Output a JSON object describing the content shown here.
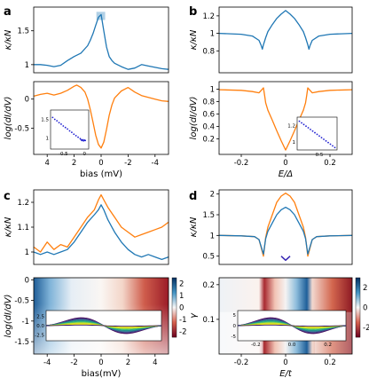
{
  "panel_labels": [
    "a",
    "b",
    "c",
    "d"
  ],
  "colors": {
    "blue": "#1f77b4",
    "orange": "#ff7f0e",
    "inset_blue": "#1f1fd0"
  },
  "chart_data": [
    {
      "id": "a-top",
      "type": "line",
      "ylabel": "κ/κN",
      "xlim": [
        5,
        -5
      ],
      "ylim": [
        0.88,
        1.85
      ],
      "ytick_labels": [
        "1",
        "1.5"
      ],
      "ytick_values": [
        1,
        1.5
      ],
      "series": [
        {
          "color": "#1f77b4",
          "x": [
            5,
            4.5,
            4,
            3.5,
            3,
            2.5,
            2,
            1.5,
            1,
            0.8,
            0.6,
            0.4,
            0.2,
            0,
            -0.2,
            -0.4,
            -0.6,
            -0.8,
            -1,
            -1.5,
            -2,
            -2.5,
            -3,
            -3.5,
            -4,
            -4.5,
            -5
          ],
          "y": [
            1.0,
            1.0,
            0.99,
            0.97,
            0.99,
            1.06,
            1.12,
            1.17,
            1.28,
            1.36,
            1.46,
            1.58,
            1.7,
            1.74,
            1.5,
            1.26,
            1.12,
            1.06,
            1.02,
            0.97,
            0.93,
            0.95,
            1.0,
            0.98,
            0.96,
            0.94,
            0.93
          ]
        }
      ]
    },
    {
      "id": "a-bottom",
      "type": "line",
      "ylabel": "log(dI/dV)",
      "xlabel": "bias (mV)",
      "xlim": [
        5,
        -5
      ],
      "ylim": [
        -0.95,
        0.3
      ],
      "xtick_labels": [
        "4",
        "2",
        "0",
        "-2",
        "-4"
      ],
      "xtick_values": [
        4,
        2,
        0,
        -2,
        -4
      ],
      "ytick_labels": [
        "0",
        "-0.5"
      ],
      "ytick_values": [
        0,
        -0.5
      ],
      "series": [
        {
          "color": "#ff7f0e",
          "x": [
            5,
            4.5,
            4,
            3.5,
            3,
            2.5,
            2,
            1.8,
            1.5,
            1.2,
            1,
            0.8,
            0.6,
            0.4,
            0.2,
            0,
            -0.2,
            -0.4,
            -0.6,
            -0.8,
            -1,
            -1.5,
            -2,
            -2.5,
            -3,
            -3.5,
            -4,
            -4.5,
            -5
          ],
          "y": [
            0.05,
            0.08,
            0.1,
            0.07,
            0.1,
            0.15,
            0.22,
            0.24,
            0.2,
            0.12,
            0.0,
            -0.18,
            -0.4,
            -0.62,
            -0.78,
            -0.84,
            -0.74,
            -0.52,
            -0.28,
            -0.1,
            0.02,
            0.14,
            0.2,
            0.12,
            0.06,
            0.03,
            0.0,
            -0.03,
            -0.04
          ]
        }
      ],
      "inset": {
        "type": "scatter",
        "color": "#1f1fd0",
        "xtick_labels": [
          "-0.5",
          "0"
        ],
        "xtick_values": [
          -0.5,
          0
        ],
        "ytick_labels": [
          "1.5",
          "1"
        ],
        "ytick_values": [
          1.5,
          1
        ],
        "xlim": [
          -0.8,
          0.1
        ],
        "ylim": [
          0.7,
          1.75
        ],
        "x": [
          -0.75,
          -0.7,
          -0.65,
          -0.6,
          -0.55,
          -0.5,
          -0.45,
          -0.4,
          -0.35,
          -0.3,
          -0.25,
          -0.2,
          -0.15,
          -0.1,
          -0.08,
          -0.06,
          -0.04,
          -0.02,
          0.0,
          0.02
        ],
        "y": [
          1.55,
          1.5,
          1.46,
          1.41,
          1.37,
          1.32,
          1.28,
          1.24,
          1.19,
          1.15,
          1.1,
          1.06,
          1.02,
          0.98,
          0.95,
          0.93,
          0.95,
          0.92,
          0.94,
          0.93
        ]
      }
    },
    {
      "id": "b-top",
      "type": "line",
      "ylabel": "κ/κN",
      "xlim": [
        -0.3,
        0.3
      ],
      "ylim": [
        0.55,
        1.3
      ],
      "ytick_labels": [
        "1.2",
        "1",
        "0.8"
      ],
      "ytick_values": [
        1.2,
        1.0,
        0.8
      ],
      "series": [
        {
          "color": "#1f77b4",
          "x": [
            -0.3,
            -0.2,
            -0.15,
            -0.12,
            -0.11,
            -0.105,
            -0.1,
            -0.09,
            -0.08,
            -0.06,
            -0.04,
            -0.02,
            0,
            0.02,
            0.04,
            0.06,
            0.08,
            0.09,
            0.1,
            0.105,
            0.11,
            0.12,
            0.15,
            0.2,
            0.3
          ],
          "y": [
            1.0,
            0.99,
            0.97,
            0.92,
            0.86,
            0.82,
            0.87,
            0.95,
            1.02,
            1.1,
            1.17,
            1.22,
            1.26,
            1.22,
            1.17,
            1.1,
            1.02,
            0.95,
            0.87,
            0.82,
            0.86,
            0.92,
            0.97,
            0.99,
            1.0
          ]
        }
      ]
    },
    {
      "id": "b-bottom",
      "type": "line",
      "ylabel": "log(dI/dV)",
      "xlabel": "E/Δ",
      "xlim": [
        -0.3,
        0.3
      ],
      "ylim": [
        -0.05,
        1.12
      ],
      "xtick_labels": [
        "-0.2",
        "0",
        "0.2"
      ],
      "xtick_values": [
        -0.2,
        0,
        0.2
      ],
      "ytick_labels": [
        "1",
        "0.8",
        "0.6",
        "0.4",
        "0.2"
      ],
      "ytick_values": [
        1,
        0.8,
        0.6,
        0.4,
        0.2
      ],
      "series": [
        {
          "color": "#ff7f0e",
          "x": [
            -0.3,
            -0.2,
            -0.15,
            -0.12,
            -0.11,
            -0.1,
            -0.095,
            -0.09,
            -0.08,
            -0.06,
            -0.04,
            -0.02,
            0,
            0.02,
            0.04,
            0.06,
            0.08,
            0.09,
            0.095,
            0.1,
            0.11,
            0.12,
            0.15,
            0.2,
            0.3
          ],
          "y": [
            0.99,
            0.98,
            0.96,
            0.94,
            0.98,
            1.02,
            0.9,
            0.78,
            0.66,
            0.5,
            0.33,
            0.17,
            0.02,
            0.17,
            0.33,
            0.5,
            0.66,
            0.78,
            0.9,
            1.02,
            0.98,
            0.94,
            0.96,
            0.98,
            0.99
          ]
        }
      ],
      "inset": {
        "type": "scatter",
        "color": "#1f1fd0",
        "xtick_labels": [
          "0.5"
        ],
        "xtick_values": [
          0.5
        ],
        "ytick_labels": [
          "1.2",
          "1"
        ],
        "ytick_values": [
          1.2,
          1.0
        ],
        "xlim": [
          0,
          0.9
        ],
        "ylim": [
          0.9,
          1.3
        ],
        "x": [
          0.05,
          0.1,
          0.15,
          0.2,
          0.25,
          0.3,
          0.35,
          0.4,
          0.45,
          0.5,
          0.55,
          0.6,
          0.65,
          0.7,
          0.75,
          0.8,
          0.85
        ],
        "y": [
          1.25,
          1.23,
          1.21,
          1.19,
          1.17,
          1.15,
          1.13,
          1.11,
          1.09,
          1.07,
          1.05,
          1.03,
          1.01,
          0.99,
          0.97,
          0.95,
          0.93
        ]
      }
    },
    {
      "id": "c-top",
      "type": "line",
      "ylabel": "κ/κN",
      "xlim": [
        -5,
        5
      ],
      "ylim": [
        0.95,
        1.25
      ],
      "ytick_labels": [
        "1.2",
        "1.1",
        "1"
      ],
      "ytick_values": [
        1.2,
        1.1,
        1.0
      ],
      "series": [
        {
          "color": "#ff7f0e",
          "x": [
            -5,
            -4.5,
            -4,
            -3.5,
            -3,
            -2.5,
            -2,
            -1.5,
            -1,
            -0.5,
            -0.2,
            0,
            0.2,
            0.5,
            1,
            1.5,
            2,
            2.5,
            3,
            3.5,
            4,
            4.5,
            5
          ],
          "y": [
            1.02,
            1.0,
            1.04,
            1.01,
            1.03,
            1.02,
            1.06,
            1.1,
            1.14,
            1.17,
            1.21,
            1.23,
            1.21,
            1.18,
            1.14,
            1.1,
            1.08,
            1.06,
            1.07,
            1.08,
            1.09,
            1.1,
            1.12
          ]
        },
        {
          "color": "#1f77b4",
          "x": [
            -5,
            -4.5,
            -4,
            -3.5,
            -3,
            -2.5,
            -2,
            -1.5,
            -1,
            -0.5,
            -0.2,
            0,
            0.2,
            0.5,
            1,
            1.5,
            2,
            2.5,
            3,
            3.5,
            4,
            4.5,
            5
          ],
          "y": [
            1.0,
            0.99,
            1.0,
            0.99,
            1.0,
            1.01,
            1.04,
            1.08,
            1.12,
            1.15,
            1.17,
            1.19,
            1.17,
            1.13,
            1.08,
            1.04,
            1.01,
            0.99,
            0.98,
            0.99,
            0.98,
            0.97,
            0.98
          ]
        }
      ]
    },
    {
      "id": "c-bottom",
      "type": "heatmap",
      "ylabel": "log(dI/dV)",
      "xlabel": "bias(mV)",
      "xlim": [
        -5,
        5
      ],
      "ylim": [
        -1.8,
        0.05
      ],
      "xtick_labels": [
        "-4",
        "-2",
        "0",
        "2",
        "4"
      ],
      "xtick_values": [
        -4,
        -2,
        0,
        2,
        4
      ],
      "ytick_labels": [
        "0",
        "-0.5",
        "-1",
        "-1.5"
      ],
      "ytick_values": [
        0,
        -0.5,
        -1,
        -1.5
      ],
      "colorbar": {
        "ticks": [
          "2",
          "1",
          "0",
          "-1",
          "-2"
        ],
        "range": [
          -2.5,
          2.5
        ]
      },
      "inset": {
        "type": "line",
        "ytick_labels": [
          "2.5",
          "0.0",
          "-2.5"
        ],
        "ytick_values": [
          2.5,
          0,
          -2.5
        ],
        "xtick_labels": [],
        "xlim": [
          -5,
          5
        ],
        "ylim": [
          -4,
          4
        ],
        "curves": 12
      }
    },
    {
      "id": "d-top",
      "type": "line",
      "ylabel": "κ/κN",
      "xlim": [
        -0.3,
        0.3
      ],
      "ylim": [
        0.3,
        2.1
      ],
      "ytick_labels": [
        "2",
        "1.5",
        "1",
        "0.5"
      ],
      "ytick_values": [
        2,
        1.5,
        1,
        0.5
      ],
      "series": [
        {
          "color": "#ff7f0e",
          "x": [
            -0.3,
            -0.2,
            -0.14,
            -0.12,
            -0.1,
            -0.09,
            -0.08,
            -0.06,
            -0.04,
            -0.02,
            0,
            0.02,
            0.04,
            0.06,
            0.08,
            0.09,
            0.1,
            0.12,
            0.14,
            0.2,
            0.3
          ],
          "y": [
            1.0,
            0.99,
            0.97,
            0.9,
            0.5,
            0.95,
            1.2,
            1.5,
            1.8,
            1.95,
            2.02,
            1.95,
            1.8,
            1.5,
            1.2,
            0.95,
            0.5,
            0.9,
            0.97,
            0.99,
            1.0
          ]
        },
        {
          "color": "#1f77b4",
          "x": [
            -0.3,
            -0.2,
            -0.14,
            -0.12,
            -0.1,
            -0.09,
            -0.08,
            -0.06,
            -0.04,
            -0.02,
            0,
            0.02,
            0.04,
            0.06,
            0.08,
            0.09,
            0.1,
            0.12,
            0.14,
            0.2,
            0.3
          ],
          "y": [
            1.0,
            0.99,
            0.97,
            0.9,
            0.55,
            0.92,
            1.1,
            1.3,
            1.5,
            1.62,
            1.68,
            1.62,
            1.5,
            1.3,
            1.1,
            0.92,
            0.55,
            0.9,
            0.97,
            0.99,
            1.0
          ]
        },
        {
          "color": "#3b2bb5",
          "x": [
            -0.02,
            0,
            0.02
          ],
          "y": [
            0.5,
            0.4,
            0.5
          ]
        }
      ]
    },
    {
      "id": "d-bottom",
      "type": "heatmap",
      "ylabel": "γ",
      "xlabel": "E/t",
      "xlim": [
        -0.3,
        0.3
      ],
      "ylim": [
        0,
        0.22
      ],
      "xtick_labels": [
        "-0.2",
        "0",
        "0.2"
      ],
      "xtick_values": [
        -0.2,
        0,
        0.2
      ],
      "ytick_labels": [
        "0.2",
        "0.1"
      ],
      "ytick_values": [
        0.2,
        0.1
      ],
      "colorbar": {
        "ticks": [
          "2",
          "0",
          "-2"
        ],
        "range": [
          -3,
          3
        ]
      },
      "inset": {
        "type": "line",
        "ytick_labels": [
          "5",
          "0",
          "-5"
        ],
        "ytick_values": [
          5,
          0,
          -5
        ],
        "xtick_labels": [
          "-0.2",
          "0.0",
          "0.2"
        ],
        "xtick_values": [
          -0.2,
          0,
          0.2
        ],
        "xlim": [
          -0.3,
          0.3
        ],
        "ylim": [
          -7,
          7
        ],
        "curves": 12
      }
    }
  ]
}
